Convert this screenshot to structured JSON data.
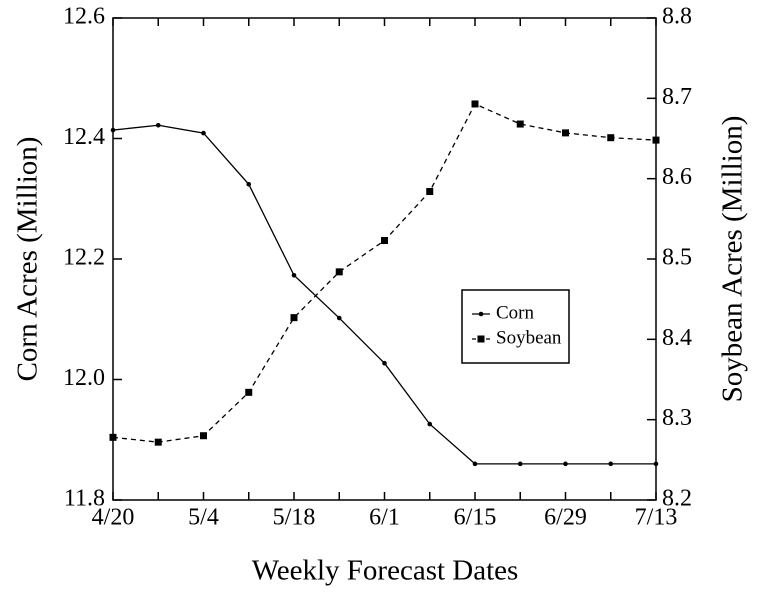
{
  "chart_data": {
    "type": "line",
    "xlabel": "Weekly Forecast Dates",
    "ylabel": "Corn Acres (Million)",
    "y2label": "Soybean Acres (Million)",
    "categories": [
      "4/20",
      null,
      "5/4",
      null,
      "5/18",
      null,
      "6/1",
      null,
      "6/15",
      null,
      "6/29",
      null,
      "7/13"
    ],
    "ylim": [
      11.8,
      12.6
    ],
    "yticks": [
      11.8,
      {
        "value": 12,
        "label": "12.0"
      },
      12.2,
      12.4,
      12.6
    ],
    "y2lim": [
      8.2,
      8.8
    ],
    "y2ticks": [
      8.2,
      8.3,
      8.4,
      8.5,
      8.6,
      8.7,
      8.8
    ],
    "legend": "center-right",
    "series": [
      {
        "name": "Corn",
        "color": "#000000",
        "line_style": "solid",
        "marker": "dot",
        "values": [
          12.414,
          12.422,
          12.409,
          12.324,
          12.173,
          12.102,
          12.027,
          11.926,
          11.86,
          11.86,
          11.86,
          11.86,
          11.86
        ]
      },
      {
        "name": "Soybean",
        "color": "#000000",
        "line_style": "dashed",
        "marker": "square",
        "axis": "y2",
        "values": [
          8.278,
          8.272,
          8.28,
          8.334,
          8.427,
          8.484,
          8.523,
          8.584,
          8.693,
          8.668,
          8.657,
          8.651,
          8.648
        ]
      }
    ]
  }
}
